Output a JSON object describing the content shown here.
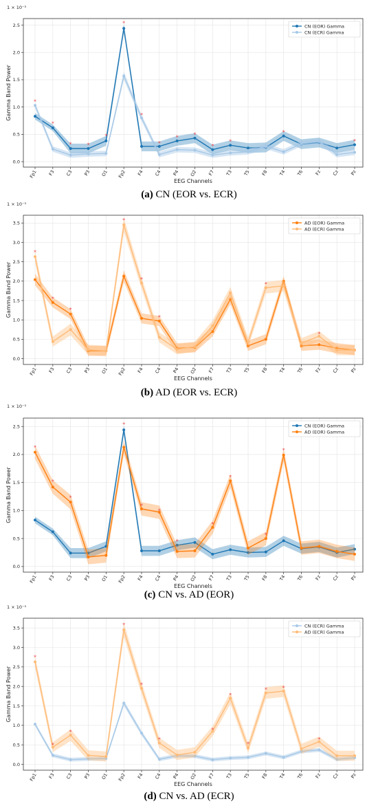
{
  "chart_data": [
    {
      "type": "line",
      "caption_bold": "(a)",
      "caption_rest": " CN (EOR vs. ECR)",
      "xlabel": "EEG Channels",
      "ylabel": "Gamma Band Power",
      "exponent_label": "1 × 10⁻³",
      "categories": [
        "Fp1",
        "F3",
        "C3",
        "P3",
        "O1",
        "Fp2",
        "F4",
        "C4",
        "P4",
        "O2",
        "F7",
        "T3",
        "T5",
        "F8",
        "T4",
        "T6",
        "Fz",
        "Cz",
        "Pz"
      ],
      "ylim": [
        -0.1,
        2.62
      ],
      "yticks": [
        0.0,
        0.5,
        1.0,
        1.5,
        2.0,
        2.5
      ],
      "ytick_labels": [
        "0.0",
        "0.5",
        "1.0",
        "1.5",
        "2.0",
        "2.5"
      ],
      "grid": true,
      "legend_position": "top-right",
      "series": [
        {
          "name": "CN (EOR) Gamma",
          "color": "#1f77b4",
          "band_alpha": 0.35,
          "values": [
            0.83,
            0.62,
            0.24,
            0.24,
            0.38,
            2.44,
            0.28,
            0.28,
            0.38,
            0.43,
            0.22,
            0.3,
            0.25,
            0.26,
            0.47,
            0.32,
            0.35,
            0.25,
            0.31
          ],
          "error": [
            0.06,
            0.06,
            0.09,
            0.09,
            0.09,
            0.08,
            0.09,
            0.09,
            0.09,
            0.09,
            0.09,
            0.09,
            0.09,
            0.09,
            0.09,
            0.09,
            0.09,
            0.09,
            0.09
          ]
        },
        {
          "name": "CN (ECR) Gamma",
          "color": "#a6c8e6",
          "band_alpha": 0.45,
          "values": [
            1.03,
            0.23,
            0.12,
            0.14,
            0.15,
            1.57,
            0.8,
            0.13,
            0.22,
            0.21,
            0.12,
            0.16,
            0.18,
            0.28,
            0.18,
            0.33,
            0.37,
            0.13,
            0.17
          ],
          "error": [
            0.05,
            0.05,
            0.05,
            0.05,
            0.05,
            0.07,
            0.06,
            0.05,
            0.05,
            0.05,
            0.05,
            0.05,
            0.05,
            0.05,
            0.05,
            0.05,
            0.05,
            0.05,
            0.05
          ]
        }
      ],
      "significance_markers": [
        {
          "category": "Fp1",
          "y": 1.1
        },
        {
          "category": "F3",
          "y": 0.7
        },
        {
          "category": "C3",
          "y": 0.32
        },
        {
          "category": "P3",
          "y": 0.31
        },
        {
          "category": "O1",
          "y": 0.47
        },
        {
          "category": "Fp2",
          "y": 2.54
        },
        {
          "category": "F4",
          "y": 0.86
        },
        {
          "category": "C4",
          "y": 0.34
        },
        {
          "category": "P4",
          "y": 0.45
        },
        {
          "category": "O2",
          "y": 0.5
        },
        {
          "category": "F7",
          "y": 0.29
        },
        {
          "category": "T3",
          "y": 0.37
        },
        {
          "category": "T4",
          "y": 0.54
        },
        {
          "category": "Pz",
          "y": 0.38
        }
      ]
    },
    {
      "type": "line",
      "caption_bold": "(b)",
      "caption_rest": " AD (EOR vs. ECR)",
      "xlabel": "EEG Channels",
      "ylabel": "Gamma Band Power",
      "exponent_label": "1 × 10⁻³",
      "categories": [
        "Fp1",
        "F3",
        "C3",
        "P3",
        "O1",
        "Fp2",
        "F4",
        "C4",
        "P4",
        "O2",
        "F7",
        "T3",
        "T5",
        "F8",
        "T4",
        "T6",
        "Fz",
        "Cz",
        "Pz"
      ],
      "ylim": [
        -0.15,
        3.7
      ],
      "yticks": [
        0.0,
        0.5,
        1.0,
        1.5,
        2.0,
        2.5,
        3.0,
        3.5
      ],
      "ytick_labels": [
        "0.0",
        "0.5",
        "1.0",
        "1.5",
        "2.0",
        "2.5",
        "3.0",
        "3.5"
      ],
      "grid": true,
      "legend_position": "top-right",
      "series": [
        {
          "name": "AD (EOR) Gamma",
          "color": "#ff7f0e",
          "band_alpha": 0.3,
          "values": [
            2.04,
            1.45,
            1.15,
            0.2,
            0.2,
            2.13,
            1.04,
            0.97,
            0.27,
            0.29,
            0.7,
            1.53,
            0.33,
            0.5,
            2.0,
            0.33,
            0.36,
            0.27,
            0.22
          ],
          "error": [
            0.15,
            0.13,
            0.13,
            0.13,
            0.13,
            0.15,
            0.13,
            0.13,
            0.13,
            0.13,
            0.13,
            0.13,
            0.13,
            0.13,
            0.13,
            0.13,
            0.13,
            0.13,
            0.13
          ]
        },
        {
          "name": "AD (ECR) Gamma",
          "color": "#ffbb78",
          "band_alpha": 0.4,
          "values": [
            2.63,
            0.44,
            0.75,
            0.23,
            0.2,
            3.45,
            1.95,
            0.55,
            0.24,
            0.31,
            0.85,
            1.7,
            0.42,
            1.83,
            1.88,
            0.4,
            0.58,
            0.22,
            0.22
          ],
          "error": [
            0.15,
            0.13,
            0.15,
            0.13,
            0.13,
            0.18,
            0.15,
            0.13,
            0.13,
            0.13,
            0.13,
            0.15,
            0.13,
            0.15,
            0.15,
            0.13,
            0.13,
            0.13,
            0.13
          ]
        }
      ],
      "significance_markers": [
        {
          "category": "Fp1",
          "y": 2.75
        },
        {
          "category": "F3",
          "y": 1.55
        },
        {
          "category": "C3",
          "y": 1.27
        },
        {
          "category": "Fp2",
          "y": 3.58
        },
        {
          "category": "F4",
          "y": 2.05
        },
        {
          "category": "C4",
          "y": 1.07
        },
        {
          "category": "F8",
          "y": 1.93
        },
        {
          "category": "Fz",
          "y": 0.64
        }
      ]
    },
    {
      "type": "line",
      "caption_bold": "(c)",
      "caption_rest": " CN vs. AD (EOR)",
      "xlabel": "EEG Channels",
      "ylabel": "Gamma Band Power",
      "exponent_label": "1 × 10⁻³",
      "categories": [
        "Fp1",
        "F3",
        "C3",
        "P3",
        "O1",
        "Fp2",
        "F4",
        "C4",
        "P4",
        "O2",
        "F7",
        "T3",
        "T5",
        "F8",
        "T4",
        "T6",
        "Fz",
        "Cz",
        "Pz"
      ],
      "ylim": [
        -0.1,
        2.65
      ],
      "yticks": [
        0.0,
        0.5,
        1.0,
        1.5,
        2.0,
        2.5
      ],
      "ytick_labels": [
        "0.0",
        "0.5",
        "1.0",
        "1.5",
        "2.0",
        "2.5"
      ],
      "grid": true,
      "legend_position": "top-right",
      "series": [
        {
          "name": "CN (EOR) Gamma",
          "color": "#1f77b4",
          "band_alpha": 0.35,
          "values": [
            0.83,
            0.62,
            0.24,
            0.24,
            0.36,
            2.44,
            0.28,
            0.28,
            0.38,
            0.43,
            0.22,
            0.3,
            0.25,
            0.26,
            0.46,
            0.32,
            0.35,
            0.25,
            0.31
          ],
          "error": [
            0.06,
            0.06,
            0.09,
            0.09,
            0.09,
            0.08,
            0.09,
            0.09,
            0.09,
            0.09,
            0.09,
            0.09,
            0.09,
            0.09,
            0.09,
            0.09,
            0.09,
            0.09,
            0.09
          ]
        },
        {
          "name": "AD (EOR) Gamma",
          "color": "#ff7f0e",
          "band_alpha": 0.3,
          "values": [
            2.04,
            1.42,
            1.15,
            0.17,
            0.2,
            2.13,
            1.03,
            0.97,
            0.27,
            0.28,
            0.7,
            1.53,
            0.33,
            0.5,
            1.99,
            0.33,
            0.36,
            0.27,
            0.22
          ],
          "error": [
            0.12,
            0.12,
            0.13,
            0.13,
            0.13,
            0.12,
            0.12,
            0.12,
            0.12,
            0.12,
            0.12,
            0.12,
            0.12,
            0.12,
            0.12,
            0.12,
            0.12,
            0.12,
            0.12
          ]
        }
      ],
      "significance_markers": [
        {
          "category": "Fp1",
          "y": 2.13
        },
        {
          "category": "F3",
          "y": 1.52
        },
        {
          "category": "C3",
          "y": 1.23
        },
        {
          "category": "Fp2",
          "y": 2.54
        },
        {
          "category": "F4",
          "y": 1.09
        },
        {
          "category": "C4",
          "y": 1.0
        },
        {
          "category": "P4",
          "y": 0.45
        },
        {
          "category": "F7",
          "y": 0.76
        },
        {
          "category": "T3",
          "y": 1.6
        },
        {
          "category": "F8",
          "y": 0.57
        },
        {
          "category": "T4",
          "y": 2.08
        }
      ]
    },
    {
      "type": "line",
      "caption_bold": "(d)",
      "caption_rest": " CN vs. AD (ECR)",
      "xlabel": "EEG Channels",
      "ylabel": "Gamma Band Power",
      "exponent_label": "1 × 10⁻³",
      "categories": [
        "Fp1",
        "F3",
        "C3",
        "P3",
        "O1",
        "Fp2",
        "F4",
        "C4",
        "P4",
        "O2",
        "F7",
        "T3",
        "T5",
        "F8",
        "T4",
        "T6",
        "Fz",
        "Cz",
        "Pz"
      ],
      "ylim": [
        -0.15,
        3.75
      ],
      "yticks": [
        0.0,
        0.5,
        1.0,
        1.5,
        2.0,
        2.5,
        3.0,
        3.5
      ],
      "ytick_labels": [
        "0.0",
        "0.5",
        "1.0",
        "1.5",
        "2.0",
        "2.5",
        "3.0",
        "3.5"
      ],
      "grid": true,
      "legend_position": "top-right",
      "series": [
        {
          "name": "CN (ECR) Gamma",
          "color": "#a6c8e6",
          "band_alpha": 0.45,
          "values": [
            1.03,
            0.23,
            0.12,
            0.14,
            0.15,
            1.57,
            0.8,
            0.13,
            0.22,
            0.21,
            0.12,
            0.16,
            0.18,
            0.28,
            0.18,
            0.33,
            0.37,
            0.13,
            0.17
          ],
          "error": [
            0.05,
            0.05,
            0.05,
            0.05,
            0.05,
            0.07,
            0.06,
            0.05,
            0.05,
            0.05,
            0.05,
            0.05,
            0.05,
            0.05,
            0.05,
            0.05,
            0.05,
            0.05,
            0.05
          ]
        },
        {
          "name": "AD (ECR) Gamma",
          "color": "#ffbb78",
          "band_alpha": 0.4,
          "values": [
            2.63,
            0.44,
            0.75,
            0.23,
            0.2,
            3.45,
            1.95,
            0.55,
            0.24,
            0.31,
            0.85,
            1.7,
            0.42,
            1.83,
            1.88,
            0.4,
            0.58,
            0.22,
            0.22
          ],
          "error": [
            0.15,
            0.13,
            0.15,
            0.13,
            0.13,
            0.18,
            0.15,
            0.13,
            0.13,
            0.13,
            0.13,
            0.15,
            0.13,
            0.15,
            0.15,
            0.13,
            0.13,
            0.13,
            0.13
          ]
        }
      ],
      "significance_markers": [
        {
          "category": "Fp1",
          "y": 2.75
        },
        {
          "category": "F3",
          "y": 0.5
        },
        {
          "category": "C3",
          "y": 0.84
        },
        {
          "category": "Fp2",
          "y": 3.58
        },
        {
          "category": "F4",
          "y": 2.05
        },
        {
          "category": "C4",
          "y": 0.64
        },
        {
          "category": "F7",
          "y": 0.89
        },
        {
          "category": "T3",
          "y": 1.78
        },
        {
          "category": "T5",
          "y": 0.53
        },
        {
          "category": "F8",
          "y": 1.92
        },
        {
          "category": "T4",
          "y": 1.97
        },
        {
          "category": "Fz",
          "y": 0.64
        }
      ]
    }
  ]
}
